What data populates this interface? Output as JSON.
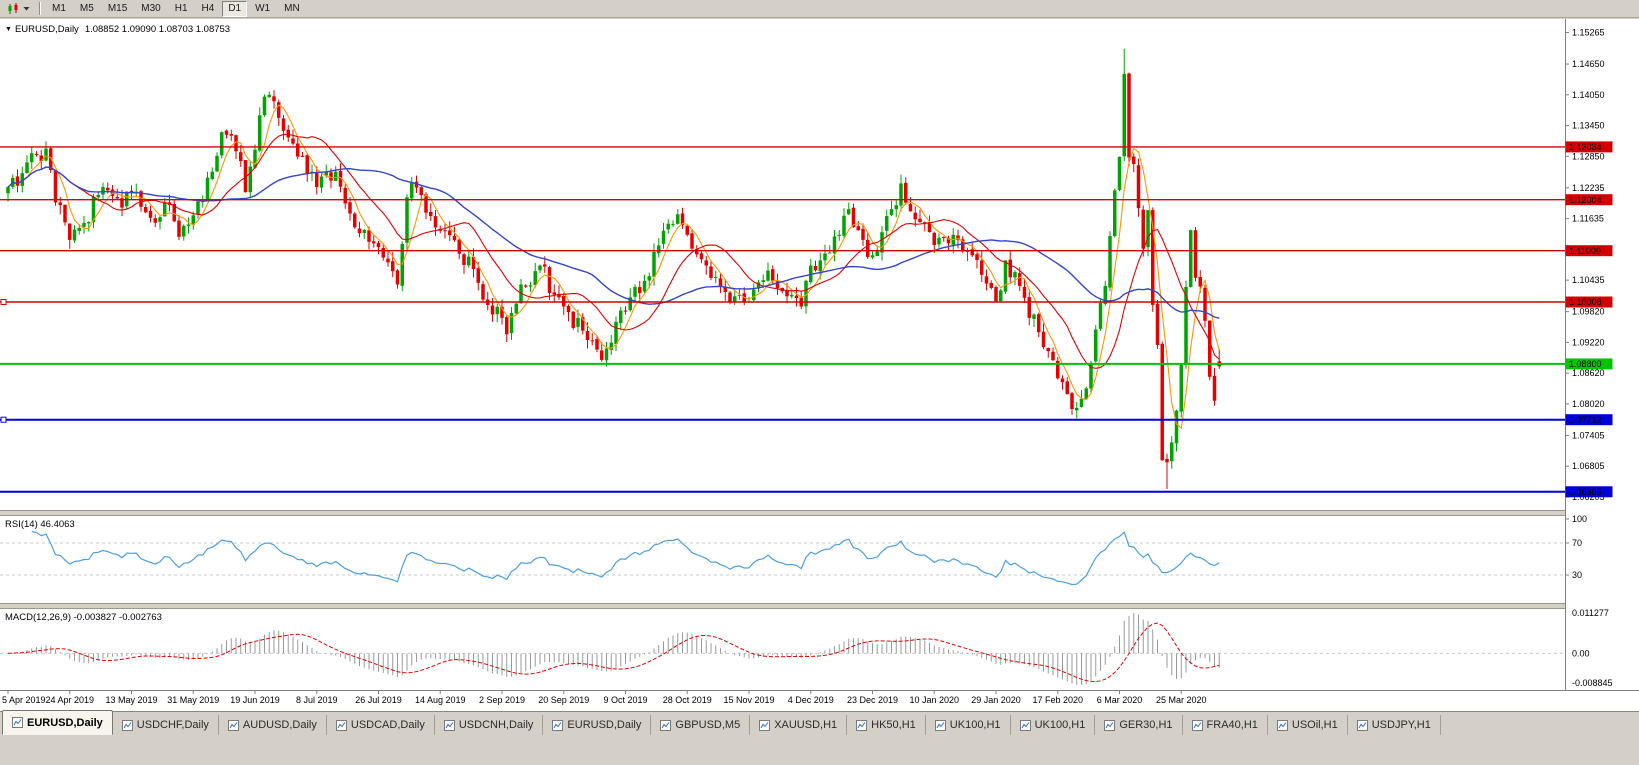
{
  "toolbar": {
    "timeframes": [
      "M1",
      "M5",
      "M15",
      "M30",
      "H1",
      "H4",
      "D1",
      "W1",
      "MN"
    ],
    "active_timeframe": "D1"
  },
  "chart": {
    "collapse_icon": "▼",
    "symbol_label": "EURUSD,Daily",
    "ohlc_text": "1.08852 1.09090 1.08703 1.08753",
    "price_ticks": [
      "1.15265",
      "1.14650",
      "1.14050",
      "1.13450",
      "1.12850",
      "1.12235",
      "1.11635",
      "1.10435",
      "1.09820",
      "1.09220",
      "1.08620",
      "1.08020",
      "1.07405",
      "1.06805",
      "1.06205"
    ],
    "hlines": [
      {
        "label": "1.13034",
        "price": 1.13034,
        "color": "#D40000",
        "width": 1.4,
        "left_marker": false
      },
      {
        "label": "1.12004",
        "price": 1.12004,
        "color": "#D40000",
        "width": 1.4,
        "left_marker": false
      },
      {
        "label": "1.11009",
        "price": 1.11009,
        "color": "#D40000",
        "width": 1.4,
        "left_marker": false
      },
      {
        "label": "1.10008",
        "price": 1.10008,
        "color": "#D40000",
        "width": 1.4,
        "left_marker": true
      },
      {
        "label": "1.08800",
        "price": 1.088,
        "color": "#00C400",
        "width": 2,
        "left_marker": false
      },
      {
        "label": "1.07712",
        "price": 1.07712,
        "color": "#0000D8",
        "width": 2,
        "left_marker": true
      },
      {
        "label": "1.06306",
        "price": 1.06306,
        "color": "#0000D8",
        "width": 2,
        "left_marker": false
      }
    ],
    "colors": {
      "bull": "#00A400",
      "bear": "#E60000",
      "ma_fast": "#FF9500",
      "ma_mid": "#E30000",
      "ma_slow": "#3346C8",
      "axis_line": "#808080",
      "background": "#FFFFFF",
      "separator": "#D4D0C8",
      "level_dash": "#C9C9C9"
    }
  },
  "rsi": {
    "label": "RSI(14) 46.4063",
    "axis_ticks": [
      "100",
      "70",
      "30"
    ],
    "axis_values": [
      100,
      70,
      30
    ],
    "levels": [
      70,
      30
    ],
    "color": "#4C9FE0",
    "current": 46.4063
  },
  "macd": {
    "label": "MACD(12,26,9) -0.003827 -0.002763",
    "axis_ticks": [
      "0.011277",
      "0.00",
      "-0.008845"
    ],
    "max": 0.011277,
    "min": -0.008845,
    "histogram_color": "#9A9A9A",
    "signal_color": "#E60000",
    "current_main": -0.003827,
    "current_signal": -0.002763
  },
  "date_axis": [
    "5 Apr 2019",
    "24 Apr 2019",
    "13 May 2019",
    "31 May 2019",
    "19 Jun 2019",
    "8 Jul 2019",
    "26 Jul 2019",
    "14 Aug 2019",
    "2 Sep 2019",
    "20 Sep 2019",
    "9 Oct 2019",
    "28 Oct 2019",
    "15 Nov 2019",
    "4 Dec 2019",
    "23 Dec 2019",
    "10 Jan 2020",
    "29 Jan 2020",
    "17 Feb 2020",
    "6 Mar 2020",
    "25 Mar 2020"
  ],
  "tabs": [
    {
      "label": "EURUSD,Daily",
      "active": true
    },
    {
      "label": "USDCHF,Daily",
      "active": false
    },
    {
      "label": "AUDUSD,Daily",
      "active": false
    },
    {
      "label": "USDCAD,Daily",
      "active": false
    },
    {
      "label": "USDCNH,Daily",
      "active": false
    },
    {
      "label": "EURUSD,Daily",
      "active": false
    },
    {
      "label": "GBPUSD,M5",
      "active": false
    },
    {
      "label": "XAUUSD,H1",
      "active": false
    },
    {
      "label": "HK50,H1",
      "active": false
    },
    {
      "label": "UK100,H1",
      "active": false
    },
    {
      "label": "UK100,H1",
      "active": false
    },
    {
      "label": "GER30,H1",
      "active": false
    },
    {
      "label": "FRA40,H1",
      "active": false
    },
    {
      "label": "USOil,H1",
      "active": false
    },
    {
      "label": "USDJPY,H1",
      "active": false
    }
  ],
  "chart_data": {
    "type": "candlestick",
    "symbol": "EURUSD",
    "period": "Daily",
    "x_range": [
      "5 Apr 2019",
      "6 Apr 2020"
    ],
    "y_range": [
      1.0597,
      1.1549
    ],
    "num_candles": 256,
    "candles_per_date_tick": 13,
    "close_anchors": [
      [
        0,
        1.1225
      ],
      [
        3,
        1.1252
      ],
      [
        6,
        1.1288
      ],
      [
        8,
        1.13
      ],
      [
        10,
        1.1195
      ],
      [
        13,
        1.1122
      ],
      [
        16,
        1.1155
      ],
      [
        20,
        1.1225
      ],
      [
        24,
        1.1185
      ],
      [
        26,
        1.1215
      ],
      [
        30,
        1.1165
      ],
      [
        34,
        1.119
      ],
      [
        36,
        1.1128
      ],
      [
        39,
        1.117
      ],
      [
        43,
        1.1255
      ],
      [
        45,
        1.1332
      ],
      [
        48,
        1.1295
      ],
      [
        50,
        1.1215
      ],
      [
        53,
        1.1365
      ],
      [
        55,
        1.1405
      ],
      [
        58,
        1.1335
      ],
      [
        62,
        1.1285
      ],
      [
        65,
        1.1225
      ],
      [
        69,
        1.1255
      ],
      [
        74,
        1.1135
      ],
      [
        78,
        1.1108
      ],
      [
        82,
        1.1035
      ],
      [
        84,
        1.1205
      ],
      [
        85,
        1.1235
      ],
      [
        88,
        1.1175
      ],
      [
        91,
        1.114
      ],
      [
        95,
        1.1095
      ],
      [
        98,
        1.1065
      ],
      [
        101,
        1.0995
      ],
      [
        104,
        1.097
      ],
      [
        105,
        1.0938
      ],
      [
        108,
        1.1035
      ],
      [
        112,
        1.1072
      ],
      [
        115,
        1.1015
      ],
      [
        117,
        1.0992
      ],
      [
        121,
        1.0945
      ],
      [
        124,
        1.0908
      ],
      [
        125,
        1.0888
      ],
      [
        128,
        1.0962
      ],
      [
        130,
        1.0982
      ],
      [
        134,
        1.1042
      ],
      [
        138,
        1.114
      ],
      [
        141,
        1.1172
      ],
      [
        143,
        1.1132
      ],
      [
        147,
        1.1072
      ],
      [
        150,
        1.1032
      ],
      [
        153,
        1.1012
      ],
      [
        156,
        1.1002
      ],
      [
        160,
        1.1062
      ],
      [
        164,
        1.1012
      ],
      [
        167,
        1.0992
      ],
      [
        169,
        1.1072
      ],
      [
        171,
        1.1082
      ],
      [
        175,
        1.1132
      ],
      [
        177,
        1.1182
      ],
      [
        180,
        1.1122
      ],
      [
        182,
        1.1092
      ],
      [
        186,
        1.1182
      ],
      [
        188,
        1.1232
      ],
      [
        191,
        1.1162
      ],
      [
        195,
        1.1112
      ],
      [
        199,
        1.1132
      ],
      [
        203,
        1.1092
      ],
      [
        208,
        1.1002
      ],
      [
        210,
        1.1082
      ],
      [
        213,
        1.1032
      ],
      [
        217,
        1.0942
      ],
      [
        221,
        1.0852
      ],
      [
        224,
        1.0792
      ],
      [
        226,
        1.0812
      ],
      [
        228,
        1.0882
      ],
      [
        231,
        1.1032
      ],
      [
        234,
        1.1284
      ],
      [
        235,
        1.1446
      ],
      [
        236,
        1.1283
      ],
      [
        237,
        1.127
      ],
      [
        238,
        1.1184
      ],
      [
        239,
        1.1105
      ],
      [
        240,
        1.118
      ],
      [
        241,
        1.0995
      ],
      [
        242,
        1.0917
      ],
      [
        243,
        1.0692
      ],
      [
        244,
        1.0688
      ],
      [
        245,
        1.0727
      ],
      [
        246,
        1.0789
      ],
      [
        247,
        1.0878
      ],
      [
        248,
        1.103
      ],
      [
        249,
        1.1141
      ],
      [
        250,
        1.1048
      ],
      [
        251,
        1.1031
      ],
      [
        252,
        1.0964
      ],
      [
        253,
        1.0855
      ],
      [
        254,
        1.0808
      ],
      [
        255,
        1.0875
      ]
    ],
    "wick_overrides": [
      {
        "i": 235,
        "high": 1.1495
      },
      {
        "i": 244,
        "low": 1.0636
      },
      {
        "i": 255,
        "open": 1.08852,
        "high": 1.0909,
        "low": 1.08703,
        "close": 1.08753
      }
    ],
    "last_ohlc": {
      "open": 1.08852,
      "high": 1.0909,
      "low": 1.08703,
      "close": 1.08753
    },
    "moving_averages": [
      {
        "period": 5,
        "color": "#FF9500"
      },
      {
        "period": 14,
        "color": "#E30000"
      },
      {
        "period": 40,
        "color": "#3346C8"
      }
    ],
    "indicators": [
      {
        "name": "RSI",
        "period": 14,
        "current": 46.4063
      },
      {
        "name": "MACD",
        "fast": 12,
        "slow": 26,
        "signal": 9,
        "current_main": -0.003827,
        "current_signal": -0.002763
      }
    ]
  }
}
